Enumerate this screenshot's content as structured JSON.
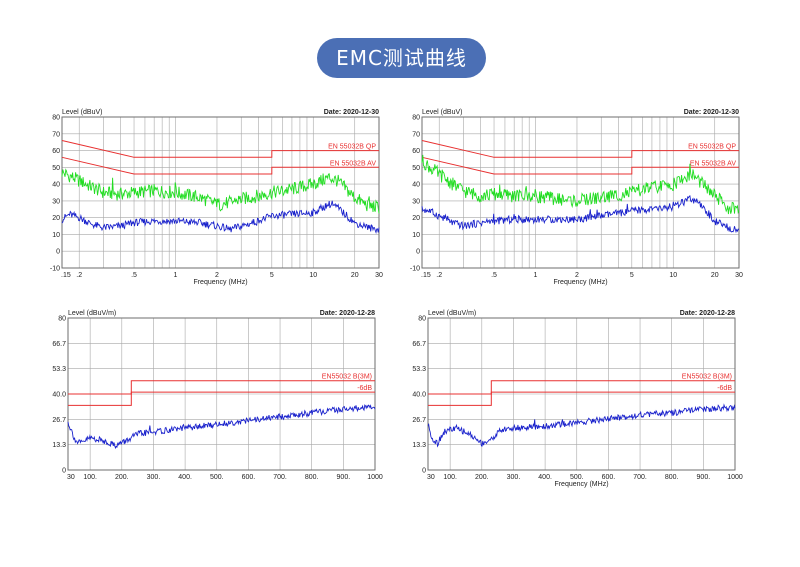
{
  "header": {
    "title": "EMC测试曲线"
  },
  "chart_data": [
    {
      "id": "ce-left",
      "type": "line",
      "scale": "log",
      "ylabel": "Level (dBuV)",
      "xlabel": "Frequency (MHz)",
      "date": "Date: 2020-12-30",
      "ylim": [
        -10,
        80
      ],
      "xlim": [
        0.15,
        30
      ],
      "y_ticks": [
        80,
        70,
        60,
        50,
        40,
        30,
        20,
        10,
        0,
        -10
      ],
      "y_tick_labels": [
        "80",
        "70",
        "60",
        "50",
        "40",
        "30",
        "20",
        "10",
        "0",
        "-10"
      ],
      "x_ticks": [
        0.15,
        0.2,
        0.5,
        1,
        2,
        5,
        10,
        20,
        30
      ],
      "x_tick_labels": [
        ".15",
        ".2",
        ".5",
        "1",
        "2",
        "5",
        "10",
        "20",
        "30"
      ],
      "limits": [
        {
          "name": "EN 55032B QP",
          "points": [
            [
              0.15,
              66
            ],
            [
              0.5,
              56
            ],
            [
              5,
              56
            ],
            [
              5,
              60
            ],
            [
              30,
              60
            ]
          ]
        },
        {
          "name": "EN 55032B AV",
          "points": [
            [
              0.15,
              56
            ],
            [
              0.5,
              46
            ],
            [
              5,
              46
            ],
            [
              5,
              50
            ],
            [
              30,
              50
            ]
          ]
        }
      ],
      "series": [
        {
          "color": "#22dd22",
          "points": [
            [
              0.15,
              47
            ],
            [
              0.17,
              45
            ],
            [
              0.2,
              42
            ],
            [
              0.25,
              38
            ],
            [
              0.3,
              35
            ],
            [
              0.4,
              34
            ],
            [
              0.5,
              35
            ],
            [
              0.7,
              36
            ],
            [
              1,
              35
            ],
            [
              1.5,
              32
            ],
            [
              2,
              28
            ],
            [
              2.5,
              29
            ],
            [
              3,
              31
            ],
            [
              4,
              33
            ],
            [
              5,
              35
            ],
            [
              7,
              37
            ],
            [
              10,
              40
            ],
            [
              13,
              44
            ],
            [
              15,
              42
            ],
            [
              20,
              32
            ],
            [
              25,
              27
            ],
            [
              30,
              26
            ]
          ]
        },
        {
          "color": "#1a22cc",
          "points": [
            [
              0.15,
              19
            ],
            [
              0.17,
              22
            ],
            [
              0.2,
              20
            ],
            [
              0.25,
              16
            ],
            [
              0.3,
              14
            ],
            [
              0.4,
              15
            ],
            [
              0.5,
              17
            ],
            [
              0.7,
              18
            ],
            [
              1,
              18
            ],
            [
              1.5,
              17
            ],
            [
              2,
              15
            ],
            [
              2.5,
              13
            ],
            [
              3,
              15
            ],
            [
              4,
              18
            ],
            [
              5,
              21
            ],
            [
              7,
              22
            ],
            [
              10,
              23
            ],
            [
              13,
              28
            ],
            [
              15,
              26
            ],
            [
              20,
              17
            ],
            [
              25,
              14
            ],
            [
              30,
              13
            ]
          ]
        }
      ]
    },
    {
      "id": "ce-right",
      "type": "line",
      "scale": "log",
      "ylabel": "Level (dBuV)",
      "xlabel": "Frequency (MHz)",
      "date": "Date: 2020-12-30",
      "ylim": [
        -10,
        80
      ],
      "xlim": [
        0.15,
        30
      ],
      "y_ticks": [
        80,
        70,
        60,
        50,
        40,
        30,
        20,
        10,
        0,
        -10
      ],
      "y_tick_labels": [
        "80",
        "70",
        "60",
        "50",
        "40",
        "30",
        "20",
        "10",
        "0",
        "-10"
      ],
      "x_ticks": [
        0.15,
        0.2,
        0.5,
        1,
        2,
        5,
        10,
        20,
        30
      ],
      "x_tick_labels": [
        ".15",
        ".2",
        ".5",
        "1",
        "2",
        "5",
        "10",
        "20",
        "30"
      ],
      "limits": [
        {
          "name": "EN 55032B QP",
          "points": [
            [
              0.15,
              66
            ],
            [
              0.5,
              56
            ],
            [
              5,
              56
            ],
            [
              5,
              60
            ],
            [
              30,
              60
            ]
          ]
        },
        {
          "name": "EN 55032B AV",
          "points": [
            [
              0.15,
              56
            ],
            [
              0.5,
              46
            ],
            [
              5,
              46
            ],
            [
              5,
              50
            ],
            [
              30,
              50
            ]
          ]
        }
      ],
      "series": [
        {
          "color": "#22dd22",
          "points": [
            [
              0.15,
              54
            ],
            [
              0.17,
              50
            ],
            [
              0.2,
              46
            ],
            [
              0.25,
              40
            ],
            [
              0.3,
              36
            ],
            [
              0.4,
              33
            ],
            [
              0.5,
              34
            ],
            [
              0.7,
              33
            ],
            [
              1,
              33
            ],
            [
              1.5,
              31
            ],
            [
              2,
              30
            ],
            [
              3,
              32
            ],
            [
              5,
              35
            ],
            [
              7,
              38
            ],
            [
              10,
              40
            ],
            [
              13,
              45
            ],
            [
              15,
              43
            ],
            [
              20,
              33
            ],
            [
              25,
              26
            ],
            [
              30,
              24
            ]
          ]
        },
        {
          "color": "#1a22cc",
          "points": [
            [
              0.15,
              25
            ],
            [
              0.17,
              24
            ],
            [
              0.2,
              21
            ],
            [
              0.25,
              17
            ],
            [
              0.3,
              15
            ],
            [
              0.4,
              17
            ],
            [
              0.5,
              18
            ],
            [
              0.7,
              19
            ],
            [
              1,
              19
            ],
            [
              1.5,
              19
            ],
            [
              2,
              19
            ],
            [
              3,
              21
            ],
            [
              5,
              24
            ],
            [
              7,
              25
            ],
            [
              10,
              26
            ],
            [
              13,
              31
            ],
            [
              15,
              29
            ],
            [
              20,
              18
            ],
            [
              25,
              14
            ],
            [
              30,
              13
            ]
          ]
        }
      ]
    },
    {
      "id": "re-left",
      "type": "line",
      "scale": "linear",
      "ylabel": "Level (dBuV/m)",
      "xlabel": "",
      "date": "Date: 2020-12-28",
      "ylim": [
        0,
        80
      ],
      "xlim": [
        30,
        1000
      ],
      "y_ticks": [
        80,
        66.7,
        53.3,
        40,
        26.7,
        13.3,
        0
      ],
      "y_tick_labels": [
        "80",
        "66.7",
        "53.3",
        "40.0",
        "26.7",
        "13.3",
        "0"
      ],
      "x_ticks": [
        30,
        100,
        200,
        300,
        400,
        500,
        600,
        700,
        800,
        900,
        1000
      ],
      "x_tick_labels": [
        "30",
        "100.",
        "200.",
        "300.",
        "400.",
        "500.",
        "600.",
        "700.",
        "800.",
        "900.",
        "1000"
      ],
      "limits": [
        {
          "name": "EN55032 B(3M)",
          "points": [
            [
              30,
              40
            ],
            [
              230,
              40
            ],
            [
              230,
              47
            ],
            [
              1000,
              47
            ]
          ]
        },
        {
          "name": "-6dB",
          "points": [
            [
              30,
              34
            ],
            [
              230,
              34
            ],
            [
              230,
              41
            ],
            [
              1000,
              41
            ]
          ]
        }
      ],
      "series": [
        {
          "color": "#1a22cc",
          "points": [
            [
              30,
              25
            ],
            [
              45,
              19
            ],
            [
              55,
              15
            ],
            [
              70,
              14
            ],
            [
              100,
              17
            ],
            [
              150,
              15
            ],
            [
              180,
              13
            ],
            [
              210,
              15
            ],
            [
              250,
              19
            ],
            [
              300,
              20
            ],
            [
              400,
              22
            ],
            [
              500,
              24
            ],
            [
              600,
              26
            ],
            [
              700,
              28
            ],
            [
              800,
              30
            ],
            [
              900,
              32
            ],
            [
              1000,
              33
            ]
          ]
        }
      ]
    },
    {
      "id": "re-right",
      "type": "line",
      "scale": "linear",
      "ylabel": "Level (dBuV/m)",
      "xlabel": "Frequency (MHz)",
      "date": "Date: 2020-12-28",
      "ylim": [
        0,
        80
      ],
      "xlim": [
        30,
        1000
      ],
      "y_ticks": [
        80,
        66.7,
        53.3,
        40,
        26.7,
        13.3,
        0
      ],
      "y_tick_labels": [
        "80",
        "66.7",
        "53.3",
        "40.0",
        "26.7",
        "13.3",
        "0"
      ],
      "x_ticks": [
        30,
        100,
        200,
        300,
        400,
        500,
        600,
        700,
        800,
        900,
        1000
      ],
      "x_tick_labels": [
        "30",
        "100.",
        "200.",
        "300.",
        "400.",
        "500.",
        "600.",
        "700.",
        "800.",
        "900.",
        "1000"
      ],
      "limits": [
        {
          "name": "EN55032 B(3M)",
          "points": [
            [
              30,
              40
            ],
            [
              230,
              40
            ],
            [
              230,
              47
            ],
            [
              1000,
              47
            ]
          ]
        },
        {
          "name": "-6dB",
          "points": [
            [
              30,
              34
            ],
            [
              230,
              34
            ],
            [
              230,
              41
            ],
            [
              1000,
              41
            ]
          ]
        }
      ],
      "series": [
        {
          "color": "#1a22cc",
          "points": [
            [
              30,
              24
            ],
            [
              45,
              16
            ],
            [
              60,
              14
            ],
            [
              80,
              20
            ],
            [
              120,
              22
            ],
            [
              160,
              19
            ],
            [
              200,
              14
            ],
            [
              230,
              16
            ],
            [
              260,
              21
            ],
            [
              300,
              22
            ],
            [
              400,
              23
            ],
            [
              500,
              25
            ],
            [
              600,
              27
            ],
            [
              700,
              29
            ],
            [
              800,
              30
            ],
            [
              900,
              32
            ],
            [
              1000,
              33
            ]
          ]
        }
      ]
    }
  ]
}
